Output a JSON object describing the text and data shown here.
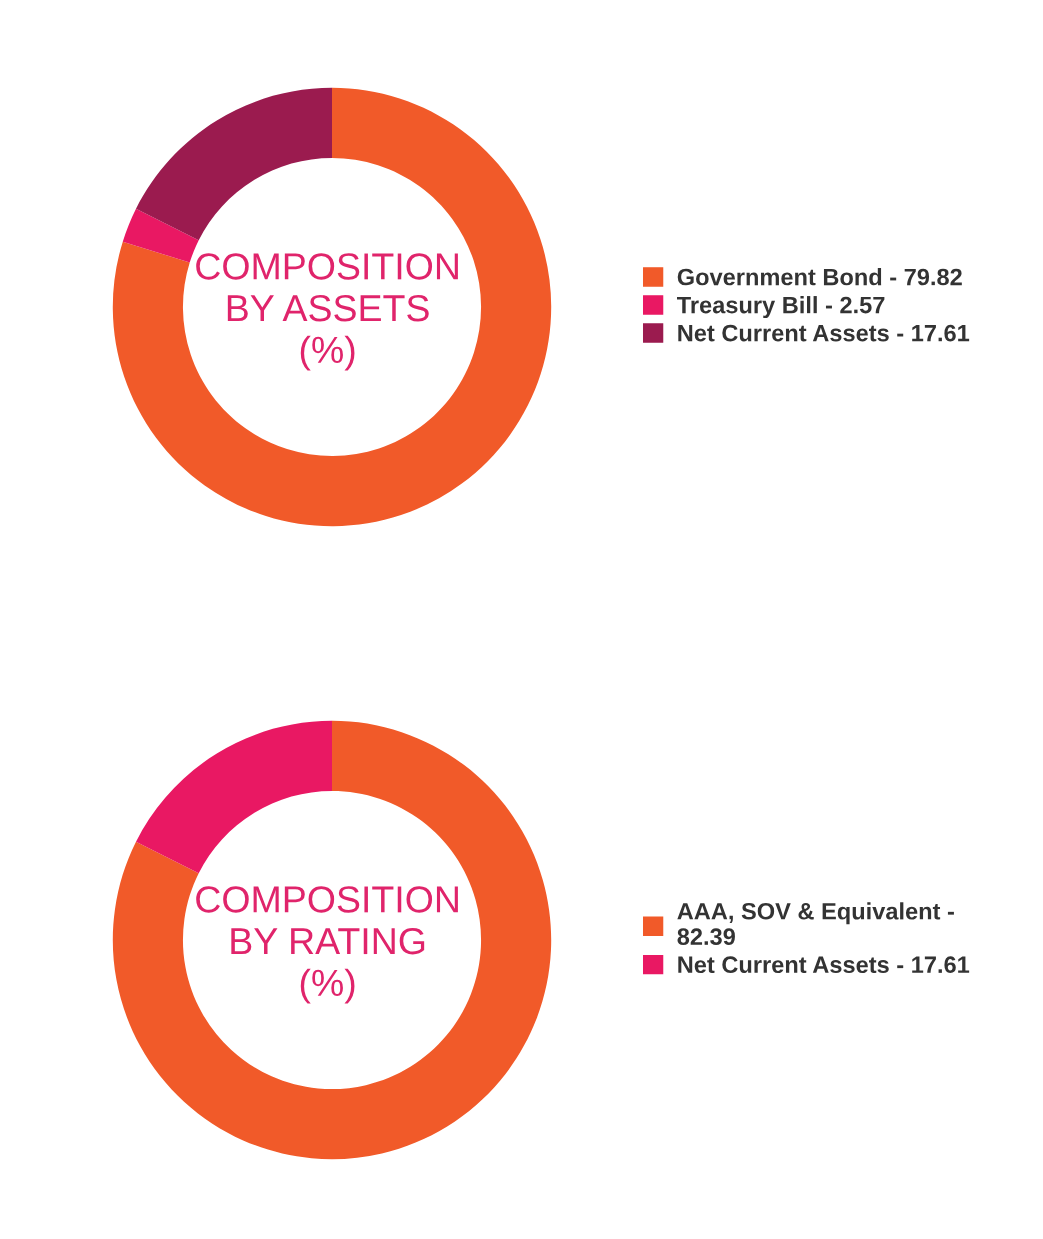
{
  "chart_data": [
    {
      "type": "donut",
      "title": "COMPOSITION\nBY ASSETS\n(%)",
      "categories": [
        "Government Bond - 79.82",
        "Treasury Bill - 2.57",
        "Net Current Assets - 17.61"
      ],
      "values": [
        79.82,
        2.57,
        17.61
      ],
      "colors": [
        "#f15a29",
        "#e91863",
        "#9b1b4f"
      ],
      "legend": "right"
    },
    {
      "type": "donut",
      "title": "COMPOSITION\nBY RATING\n(%)",
      "categories": [
        "AAA, SOV & Equivalent - 82.39",
        "Net Current Assets - 17.61"
      ],
      "values": [
        82.39,
        17.61
      ],
      "colors": [
        "#f15a29",
        "#e91863"
      ],
      "legend": "right"
    }
  ]
}
